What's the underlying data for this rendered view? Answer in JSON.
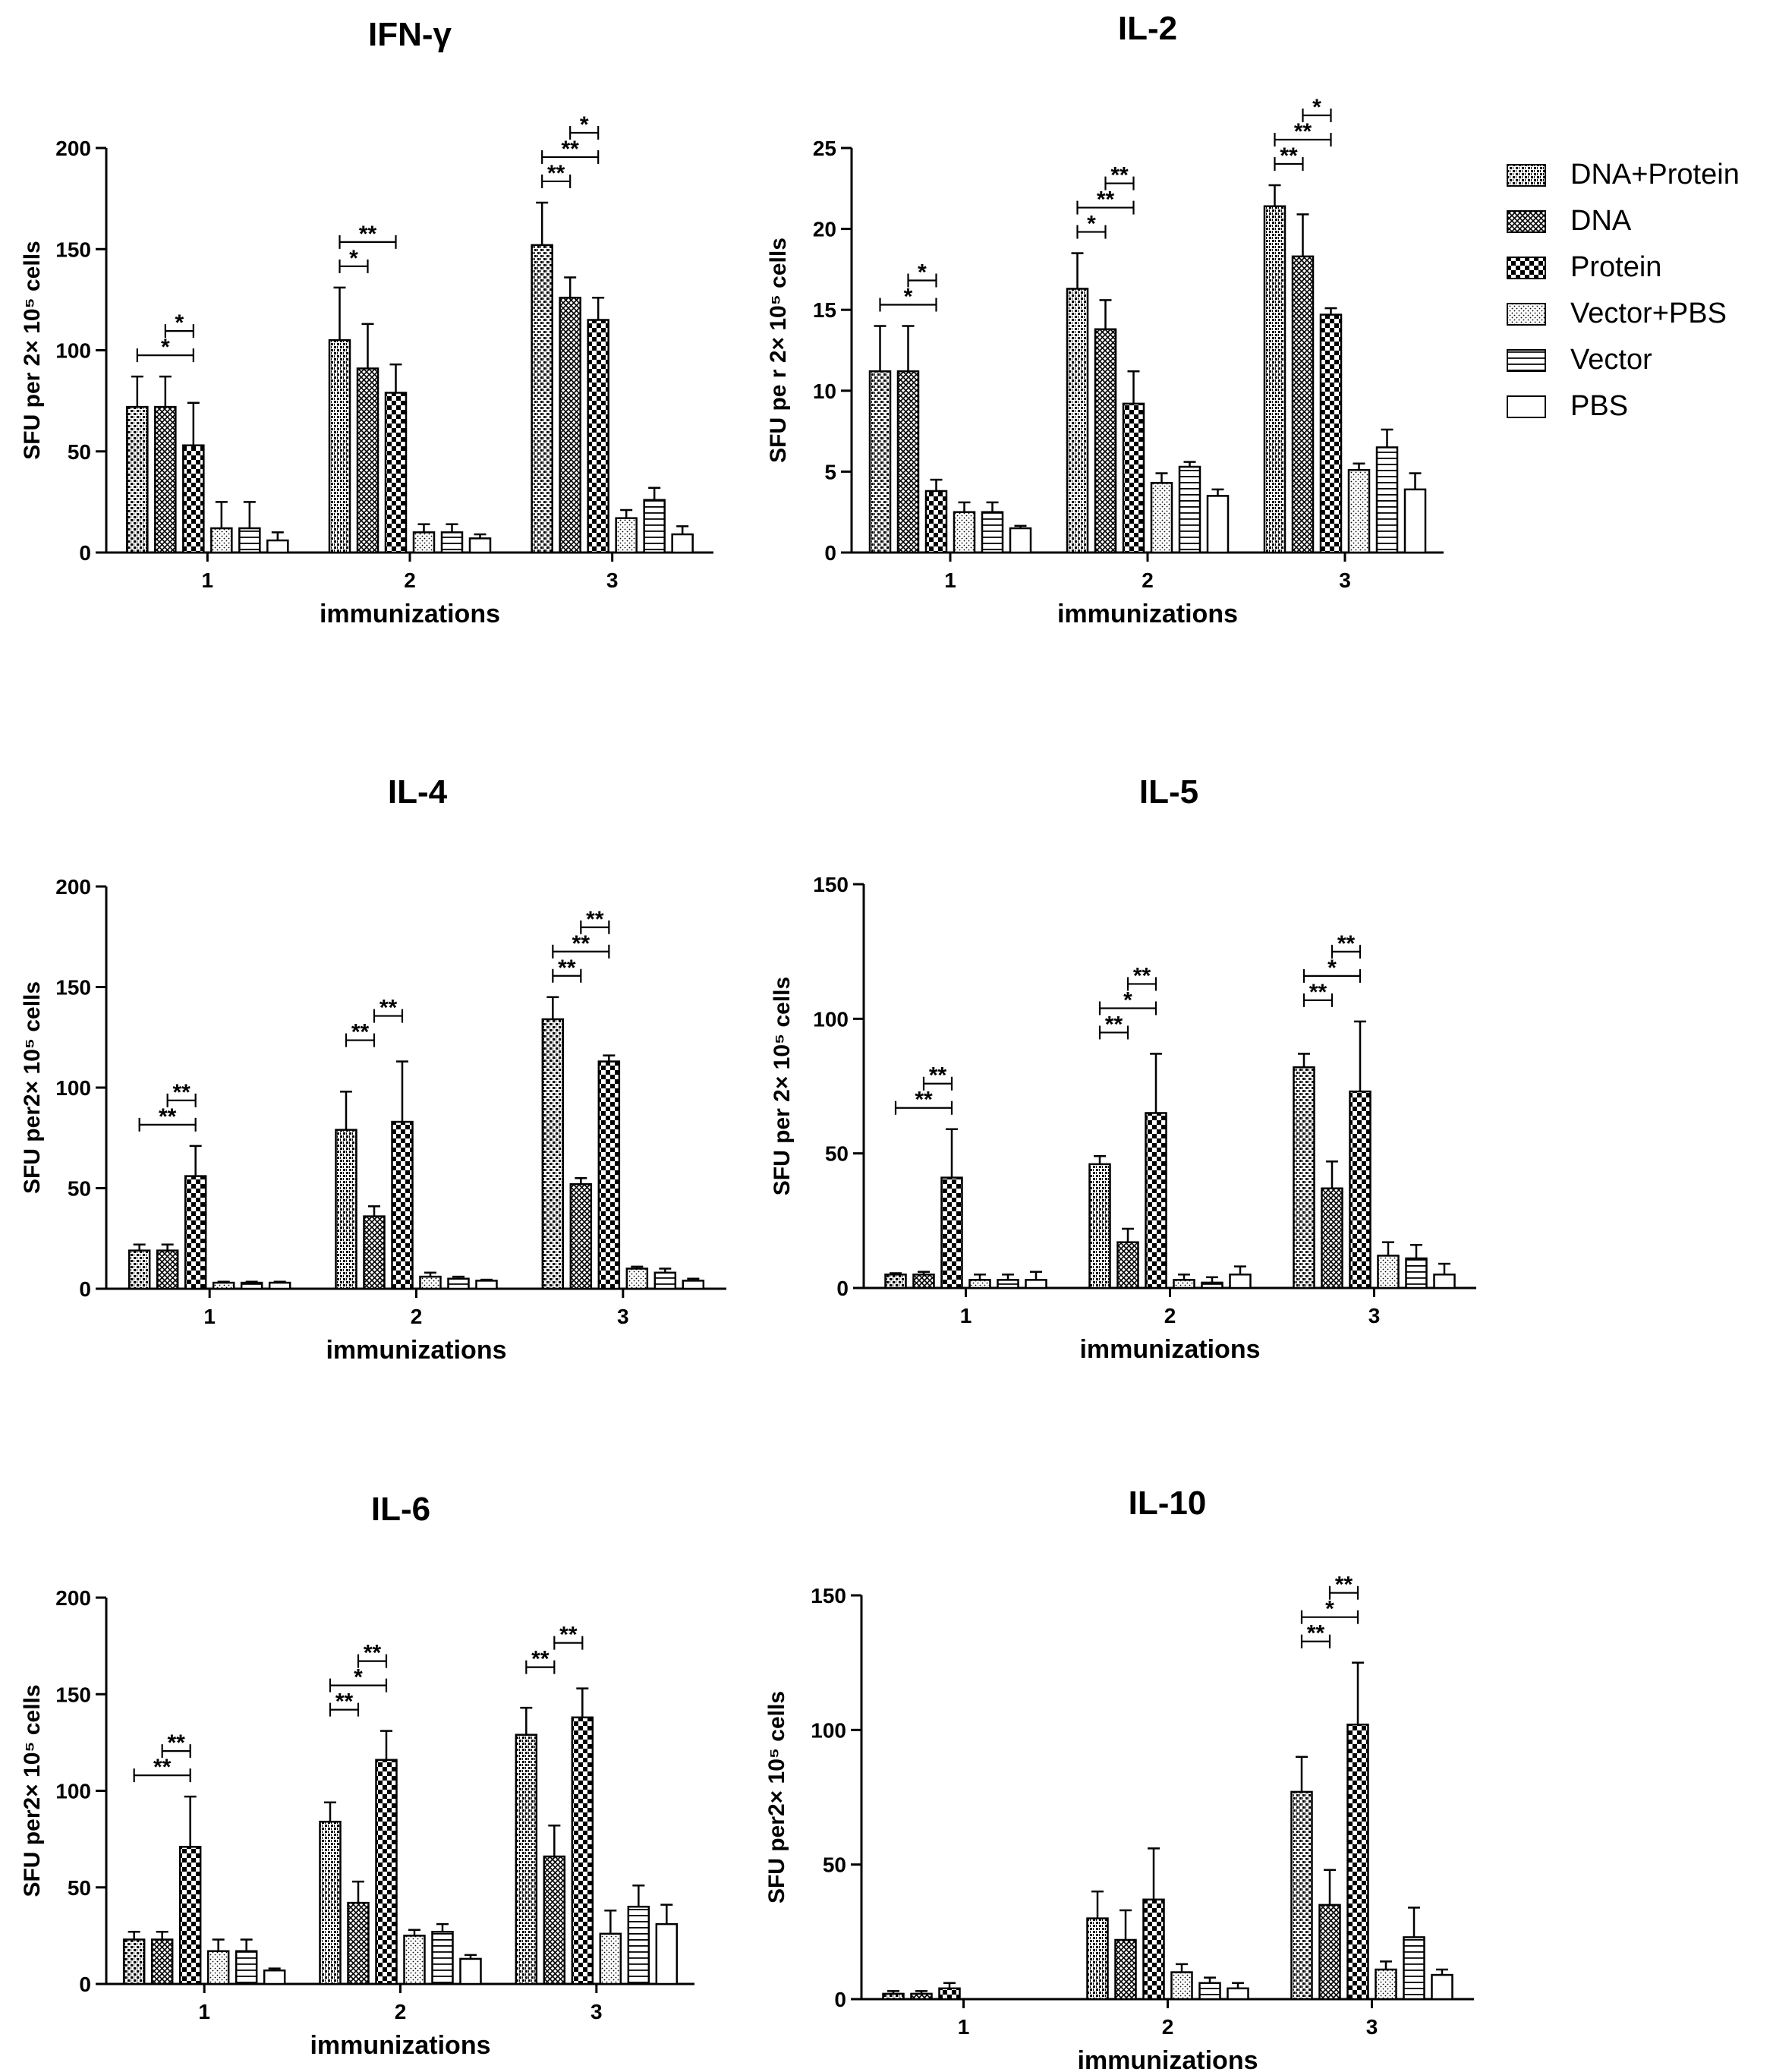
{
  "chart_data": [
    {
      "id": "ifn",
      "type": "bar",
      "title": "IFN-γ",
      "xlabel": "immunizations",
      "ylabel": "SFU per 2× 10⁵ cells",
      "ylim": [
        0,
        200
      ],
      "yticks": [
        0,
        50,
        100,
        150,
        200
      ],
      "categories": [
        "1",
        "2",
        "3"
      ],
      "series": [
        {
          "name": "DNA+Protein",
          "values": [
            72,
            105,
            152
          ],
          "errors": [
            15,
            26,
            21
          ]
        },
        {
          "name": "DNA",
          "values": [
            72,
            91,
            126
          ],
          "errors": [
            15,
            22,
            10
          ]
        },
        {
          "name": "Protein",
          "values": [
            53,
            79,
            115
          ],
          "errors": [
            21,
            14,
            11
          ]
        },
        {
          "name": "Vector+PBS",
          "values": [
            12,
            10,
            17
          ],
          "errors": [
            13,
            4,
            4
          ]
        },
        {
          "name": "Vector",
          "values": [
            12,
            10,
            26
          ],
          "errors": [
            13,
            4,
            6
          ]
        },
        {
          "name": "PBS",
          "values": [
            6,
            7,
            9
          ],
          "errors": [
            4,
            2,
            4
          ]
        }
      ],
      "significance": [
        {
          "group": 0,
          "from": 0,
          "to": 2,
          "label": "*",
          "level": 0
        },
        {
          "group": 0,
          "from": 1,
          "to": 2,
          "label": "*",
          "level": 1
        },
        {
          "group": 1,
          "from": 0,
          "to": 1,
          "label": "*",
          "level": 0
        },
        {
          "group": 1,
          "from": 0,
          "to": 2,
          "label": "**",
          "level": 1
        },
        {
          "group": 2,
          "from": 0,
          "to": 1,
          "label": "**",
          "level": 0
        },
        {
          "group": 2,
          "from": 0,
          "to": 2,
          "label": "**",
          "level": 1
        },
        {
          "group": 2,
          "from": 1,
          "to": 2,
          "label": "*",
          "level": 2
        }
      ]
    },
    {
      "id": "il2",
      "type": "bar",
      "title": "IL-2",
      "xlabel": "immunizations",
      "ylabel": "SFU pe r 2× 10⁵ cells",
      "ylim": [
        0,
        25
      ],
      "yticks": [
        0,
        5,
        10,
        15,
        20,
        25
      ],
      "categories": [
        "1",
        "2",
        "3"
      ],
      "series": [
        {
          "name": "DNA+Protein",
          "values": [
            11.2,
            16.3,
            21.4
          ],
          "errors": [
            2.8,
            2.2,
            1.3
          ]
        },
        {
          "name": "DNA",
          "values": [
            11.2,
            13.8,
            18.3
          ],
          "errors": [
            2.8,
            1.8,
            2.6
          ]
        },
        {
          "name": "Protein",
          "values": [
            3.8,
            9.2,
            14.7
          ],
          "errors": [
            0.7,
            2.0,
            0.4
          ]
        },
        {
          "name": "Vector+PBS",
          "values": [
            2.5,
            4.3,
            5.1
          ],
          "errors": [
            0.6,
            0.6,
            0.4
          ]
        },
        {
          "name": "Vector",
          "values": [
            2.5,
            5.3,
            6.5
          ],
          "errors": [
            0.6,
            0.3,
            1.1
          ]
        },
        {
          "name": "PBS",
          "values": [
            1.5,
            3.5,
            3.9
          ],
          "errors": [
            0.15,
            0.4,
            1.0
          ]
        }
      ],
      "significance": [
        {
          "group": 0,
          "from": 0,
          "to": 2,
          "label": "*",
          "level": 0
        },
        {
          "group": 0,
          "from": 1,
          "to": 2,
          "label": "*",
          "level": 1
        },
        {
          "group": 1,
          "from": 0,
          "to": 1,
          "label": "*",
          "level": 0
        },
        {
          "group": 1,
          "from": 0,
          "to": 2,
          "label": "**",
          "level": 1
        },
        {
          "group": 1,
          "from": 1,
          "to": 2,
          "label": "**",
          "level": 2
        },
        {
          "group": 2,
          "from": 0,
          "to": 1,
          "label": "**",
          "level": 0
        },
        {
          "group": 2,
          "from": 0,
          "to": 2,
          "label": "**",
          "level": 1
        },
        {
          "group": 2,
          "from": 1,
          "to": 2,
          "label": "*",
          "level": 2
        }
      ]
    },
    {
      "id": "il4",
      "type": "bar",
      "title": "IL-4",
      "xlabel": "immunizations",
      "ylabel": "SFU per2× 10⁵ cells",
      "ylim": [
        0,
        200
      ],
      "yticks": [
        0,
        50,
        100,
        150,
        200
      ],
      "categories": [
        "1",
        "2",
        "3"
      ],
      "series": [
        {
          "name": "DNA+Protein",
          "values": [
            19,
            79,
            134
          ],
          "errors": [
            3,
            19,
            11
          ]
        },
        {
          "name": "DNA",
          "values": [
            19,
            36,
            52
          ],
          "errors": [
            3,
            5,
            3
          ]
        },
        {
          "name": "Protein",
          "values": [
            56,
            83,
            113
          ],
          "errors": [
            15,
            30,
            3
          ]
        },
        {
          "name": "Vector+PBS",
          "values": [
            3,
            6,
            10
          ],
          "errors": [
            0.5,
            2,
            1
          ]
        },
        {
          "name": "Vector",
          "values": [
            3,
            5,
            8
          ],
          "errors": [
            0.5,
            1,
            2
          ]
        },
        {
          "name": "PBS",
          "values": [
            3,
            4,
            4
          ],
          "errors": [
            0.5,
            0.5,
            1
          ]
        }
      ],
      "significance": [
        {
          "group": 0,
          "from": 0,
          "to": 2,
          "label": "**",
          "level": 0
        },
        {
          "group": 0,
          "from": 1,
          "to": 2,
          "label": "**",
          "level": 1
        },
        {
          "group": 1,
          "from": 0,
          "to": 1,
          "label": "**",
          "level": 0
        },
        {
          "group": 1,
          "from": 1,
          "to": 2,
          "label": "**",
          "level": 1
        },
        {
          "group": 2,
          "from": 0,
          "to": 1,
          "label": "**",
          "level": 0
        },
        {
          "group": 2,
          "from": 0,
          "to": 2,
          "label": "**",
          "level": 1
        },
        {
          "group": 2,
          "from": 1,
          "to": 2,
          "label": "**",
          "level": 2
        }
      ]
    },
    {
      "id": "il5",
      "type": "bar",
      "title": "IL-5",
      "xlabel": "immunizations",
      "ylabel": "SFU per 2× 10⁵ cells",
      "ylim": [
        0,
        150
      ],
      "yticks": [
        0,
        50,
        100,
        150
      ],
      "categories": [
        "1",
        "2",
        "3"
      ],
      "series": [
        {
          "name": "DNA+Protein",
          "values": [
            5,
            46,
            82
          ],
          "errors": [
            0.5,
            3,
            5
          ]
        },
        {
          "name": "DNA",
          "values": [
            5,
            17,
            37
          ],
          "errors": [
            1,
            5,
            10
          ]
        },
        {
          "name": "Protein",
          "values": [
            41,
            65,
            73
          ],
          "errors": [
            18,
            22,
            26
          ]
        },
        {
          "name": "Vector+PBS",
          "values": [
            3,
            3,
            12
          ],
          "errors": [
            2,
            2,
            5
          ]
        },
        {
          "name": "Vector",
          "values": [
            3,
            2,
            11
          ],
          "errors": [
            2,
            2,
            5
          ]
        },
        {
          "name": "PBS",
          "values": [
            3,
            5,
            5
          ],
          "errors": [
            3,
            3,
            4
          ]
        }
      ],
      "significance": [
        {
          "group": 0,
          "from": 0,
          "to": 2,
          "label": "**",
          "level": 0
        },
        {
          "group": 0,
          "from": 1,
          "to": 2,
          "label": "**",
          "level": 1
        },
        {
          "group": 1,
          "from": 0,
          "to": 1,
          "label": "**",
          "level": 0
        },
        {
          "group": 1,
          "from": 0,
          "to": 2,
          "label": "*",
          "level": 1
        },
        {
          "group": 1,
          "from": 1,
          "to": 2,
          "label": "**",
          "level": 2
        },
        {
          "group": 2,
          "from": 0,
          "to": 1,
          "label": "**",
          "level": 0
        },
        {
          "group": 2,
          "from": 0,
          "to": 2,
          "label": "*",
          "level": 1
        },
        {
          "group": 2,
          "from": 1,
          "to": 2,
          "label": "**",
          "level": 2
        }
      ]
    },
    {
      "id": "il6",
      "type": "bar",
      "title": "IL-6",
      "xlabel": "immunizations",
      "ylabel": "SFU per2× 10⁵ cells",
      "ylim": [
        0,
        200
      ],
      "yticks": [
        0,
        50,
        100,
        150,
        200
      ],
      "categories": [
        "1",
        "2",
        "3"
      ],
      "series": [
        {
          "name": "DNA+Protein",
          "values": [
            23,
            84,
            129
          ],
          "errors": [
            4,
            10,
            14
          ]
        },
        {
          "name": "DNA",
          "values": [
            23,
            42,
            66
          ],
          "errors": [
            4,
            11,
            16
          ]
        },
        {
          "name": "Protein",
          "values": [
            71,
            116,
            138
          ],
          "errors": [
            26,
            15,
            15
          ]
        },
        {
          "name": "Vector+PBS",
          "values": [
            17,
            25,
            26
          ],
          "errors": [
            6,
            3,
            12
          ]
        },
        {
          "name": "Vector",
          "values": [
            17,
            27,
            40
          ],
          "errors": [
            6,
            4,
            11
          ]
        },
        {
          "name": "PBS",
          "values": [
            7,
            13,
            31
          ],
          "errors": [
            1,
            2,
            10
          ]
        }
      ],
      "significance": [
        {
          "group": 0,
          "from": 0,
          "to": 2,
          "label": "**",
          "level": 0
        },
        {
          "group": 0,
          "from": 1,
          "to": 2,
          "label": "**",
          "level": 1
        },
        {
          "group": 1,
          "from": 0,
          "to": 1,
          "label": "**",
          "level": 0
        },
        {
          "group": 1,
          "from": 0,
          "to": 2,
          "label": "*",
          "level": 1
        },
        {
          "group": 1,
          "from": 1,
          "to": 2,
          "label": "**",
          "level": 2
        },
        {
          "group": 2,
          "from": 0,
          "to": 1,
          "label": "**",
          "level": 0
        },
        {
          "group": 2,
          "from": 1,
          "to": 2,
          "label": "**",
          "level": 1
        }
      ]
    },
    {
      "id": "il10",
      "type": "bar",
      "title": "IL-10",
      "xlabel": "immunizations",
      "ylabel": "SFU per2× 10⁵ cells",
      "ylim": [
        0,
        150
      ],
      "yticks": [
        0,
        50,
        100,
        150
      ],
      "categories": [
        "1",
        "2",
        "3"
      ],
      "series": [
        {
          "name": "DNA+Protein",
          "values": [
            2,
            30,
            77
          ],
          "errors": [
            1,
            10,
            13
          ]
        },
        {
          "name": "DNA",
          "values": [
            2,
            22,
            35
          ],
          "errors": [
            1,
            11,
            13
          ]
        },
        {
          "name": "Protein",
          "values": [
            4,
            37,
            102
          ],
          "errors": [
            2,
            19,
            23
          ]
        },
        {
          "name": "Vector+PBS",
          "values": [
            0,
            10,
            11
          ],
          "errors": [
            0,
            3,
            3
          ]
        },
        {
          "name": "Vector",
          "values": [
            0,
            6,
            23
          ],
          "errors": [
            0,
            2,
            11
          ]
        },
        {
          "name": "PBS",
          "values": [
            0,
            4,
            9
          ],
          "errors": [
            0,
            2,
            2
          ]
        }
      ],
      "significance": [
        {
          "group": 2,
          "from": 0,
          "to": 1,
          "label": "**",
          "level": 0
        },
        {
          "group": 2,
          "from": 0,
          "to": 2,
          "label": "*",
          "level": 1
        },
        {
          "group": 2,
          "from": 1,
          "to": 2,
          "label": "**",
          "level": 2
        }
      ]
    }
  ],
  "legend": {
    "items": [
      {
        "label": "DNA+Protein",
        "pattern": "brick"
      },
      {
        "label": "DNA",
        "pattern": "crosshatch"
      },
      {
        "label": "Protein",
        "pattern": "checker"
      },
      {
        "label": "Vector+PBS",
        "pattern": "dots"
      },
      {
        "label": "Vector",
        "pattern": "hlines"
      },
      {
        "label": "PBS",
        "pattern": "blank"
      }
    ]
  }
}
